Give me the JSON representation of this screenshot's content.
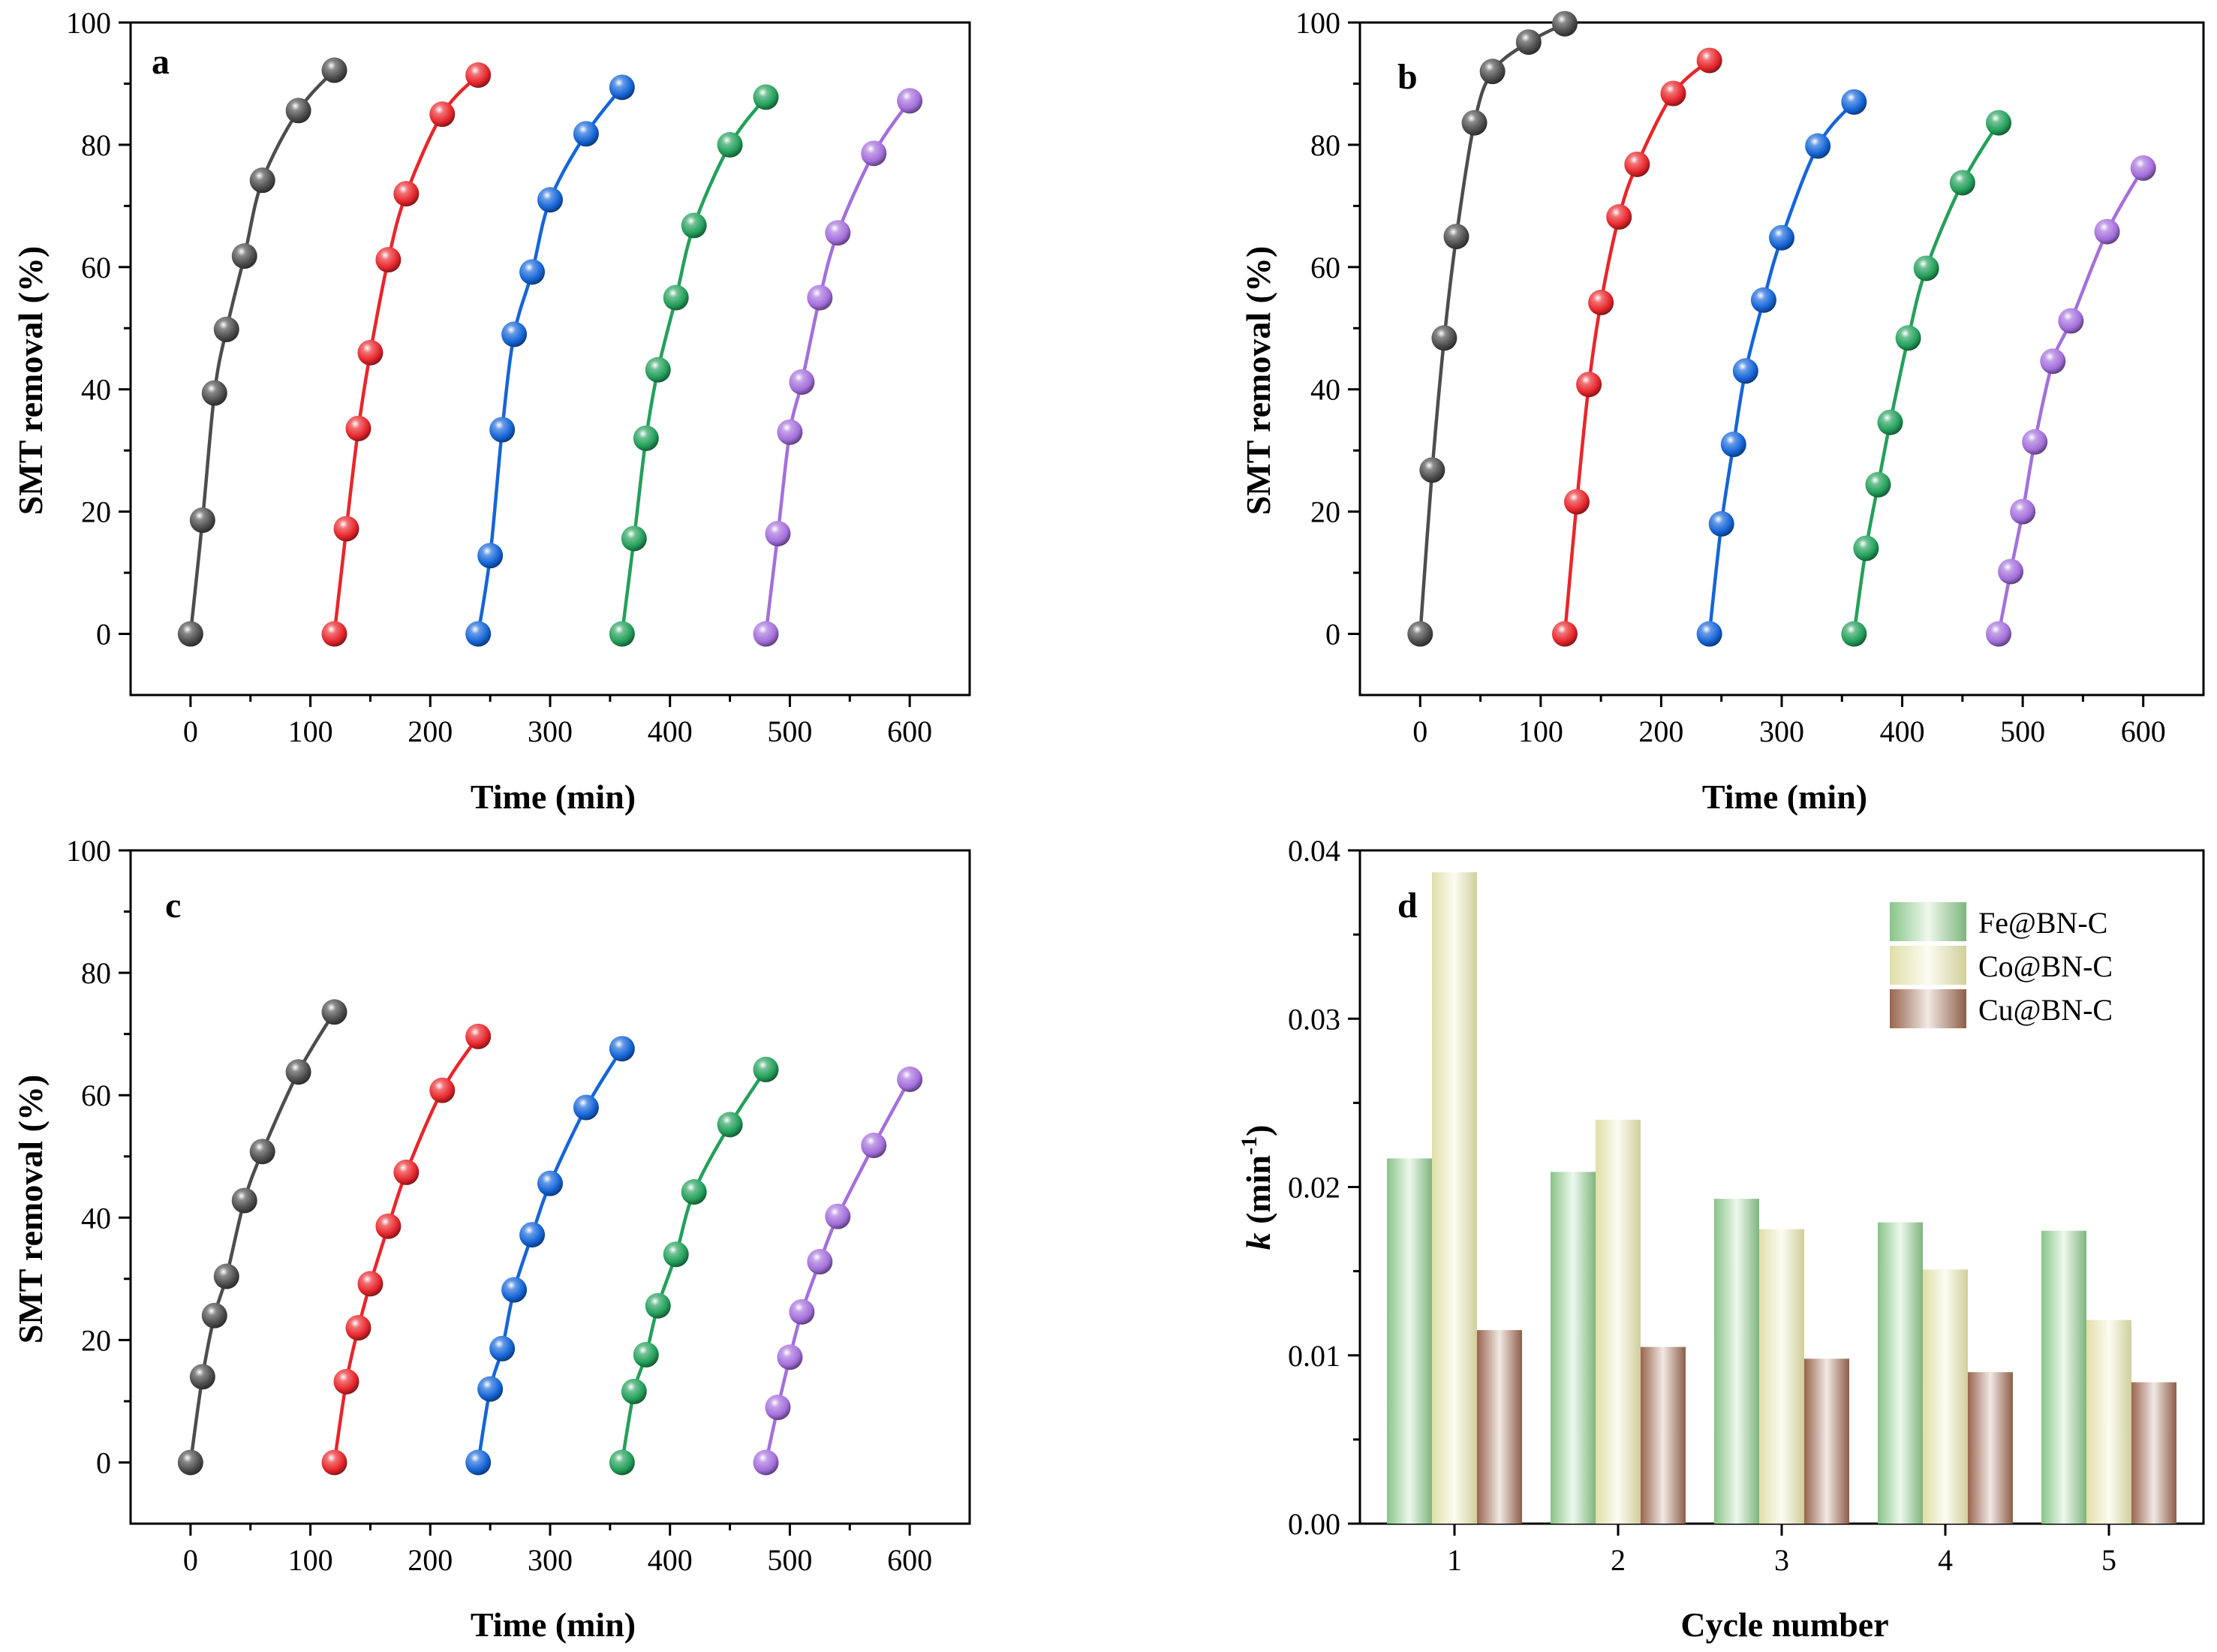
{
  "chart_data": [
    {
      "type": "line",
      "panel_label": "a",
      "xlabel": "Time (min)",
      "ylabel": "SMT removal (%)",
      "xlim": [
        -50,
        650
      ],
      "ylim": [
        -10,
        100
      ],
      "xticks": [
        0,
        100,
        200,
        300,
        400,
        500,
        600
      ],
      "yticks": [
        0,
        20,
        40,
        60,
        80,
        100
      ],
      "markers": "sphere",
      "series": [
        {
          "color": "#4d4d4d",
          "x": [
            0,
            10,
            20,
            30,
            45,
            60,
            90,
            120
          ],
          "y": [
            0,
            18.6,
            39.4,
            49.8,
            61.8,
            74.2,
            85.6,
            92.2
          ]
        },
        {
          "color": "#e8262b",
          "x": [
            120,
            130,
            140,
            150,
            165,
            180,
            210,
            240
          ],
          "y": [
            0,
            17.2,
            33.6,
            46.0,
            61.2,
            72.0,
            85.0,
            91.4
          ]
        },
        {
          "color": "#1565d8",
          "x": [
            240,
            250,
            260,
            270,
            285,
            300,
            330,
            360
          ],
          "y": [
            0,
            12.8,
            33.4,
            49.0,
            59.2,
            71.0,
            81.8,
            89.4
          ]
        },
        {
          "color": "#23a05a",
          "x": [
            360,
            370,
            380,
            390,
            405,
            420,
            450,
            480
          ],
          "y": [
            0,
            15.6,
            32.0,
            43.2,
            55.0,
            66.8,
            80.0,
            87.8
          ]
        },
        {
          "color": "#a46fdc",
          "x": [
            480,
            490,
            500,
            510,
            525,
            540,
            570,
            600
          ],
          "y": [
            0,
            16.4,
            33.0,
            41.2,
            55.0,
            65.6,
            78.6,
            87.2
          ]
        }
      ]
    },
    {
      "type": "line",
      "panel_label": "b",
      "xlabel": "Time (min)",
      "ylabel": "SMT removal (%)",
      "xlim": [
        -50,
        650
      ],
      "ylim": [
        -10,
        100
      ],
      "xticks": [
        0,
        100,
        200,
        300,
        400,
        500,
        600
      ],
      "yticks": [
        0,
        20,
        40,
        60,
        80,
        100
      ],
      "markers": "sphere",
      "series": [
        {
          "color": "#4d4d4d",
          "x": [
            0,
            10,
            20,
            30,
            45,
            60,
            90,
            120
          ],
          "y": [
            0,
            26.8,
            48.4,
            65.0,
            83.6,
            92.0,
            96.8,
            99.8
          ]
        },
        {
          "color": "#e8262b",
          "x": [
            120,
            130,
            140,
            150,
            165,
            180,
            210,
            240
          ],
          "y": [
            0,
            21.6,
            40.8,
            54.2,
            68.2,
            76.8,
            88.4,
            93.8
          ]
        },
        {
          "color": "#1565d8",
          "x": [
            240,
            250,
            260,
            270,
            285,
            300,
            330,
            360
          ],
          "y": [
            0,
            18.0,
            31.0,
            43.0,
            54.6,
            64.8,
            79.8,
            87.0
          ]
        },
        {
          "color": "#23a05a",
          "x": [
            360,
            370,
            380,
            390,
            405,
            420,
            450,
            480
          ],
          "y": [
            0,
            14.0,
            24.4,
            34.6,
            48.4,
            59.8,
            73.8,
            83.6
          ]
        },
        {
          "color": "#a46fdc",
          "x": [
            480,
            490,
            500,
            510,
            525,
            540,
            570,
            600
          ],
          "y": [
            0,
            10.2,
            20.0,
            31.4,
            44.6,
            51.2,
            65.8,
            76.2
          ]
        }
      ]
    },
    {
      "type": "line",
      "panel_label": "c",
      "xlabel": "Time (min)",
      "ylabel": "SMT removal (%)",
      "xlim": [
        -50,
        650
      ],
      "ylim": [
        -10,
        100
      ],
      "xticks": [
        0,
        100,
        200,
        300,
        400,
        500,
        600
      ],
      "yticks": [
        0,
        20,
        40,
        60,
        80,
        100
      ],
      "markers": "sphere",
      "series": [
        {
          "color": "#4d4d4d",
          "x": [
            0,
            10,
            20,
            30,
            45,
            60,
            90,
            120
          ],
          "y": [
            0,
            14.0,
            24.0,
            30.4,
            42.8,
            50.8,
            63.8,
            73.6
          ]
        },
        {
          "color": "#e8262b",
          "x": [
            120,
            130,
            140,
            150,
            165,
            180,
            210,
            240
          ],
          "y": [
            0,
            13.2,
            22.0,
            29.2,
            38.6,
            47.4,
            60.8,
            69.6
          ]
        },
        {
          "color": "#1565d8",
          "x": [
            240,
            250,
            260,
            270,
            285,
            300,
            330,
            360
          ],
          "y": [
            0,
            12.0,
            18.6,
            28.2,
            37.2,
            45.6,
            58.0,
            67.6
          ]
        },
        {
          "color": "#23a05a",
          "x": [
            360,
            370,
            380,
            390,
            405,
            420,
            450,
            480
          ],
          "y": [
            0,
            11.6,
            17.6,
            25.6,
            34.0,
            44.2,
            55.2,
            64.2
          ]
        },
        {
          "color": "#a46fdc",
          "x": [
            480,
            490,
            500,
            510,
            525,
            540,
            570,
            600
          ],
          "y": [
            0,
            9.0,
            17.2,
            24.6,
            32.8,
            40.2,
            51.8,
            62.6
          ]
        }
      ]
    },
    {
      "type": "bar",
      "panel_label": "d",
      "xlabel": "Cycle number",
      "ylabel_main": "k",
      "ylabel_unit": " (min",
      "ylabel_sup": "-1",
      "ylabel_close": ")",
      "ylim": [
        0,
        0.04
      ],
      "yticks": [
        "0.00",
        "0.01",
        "0.02",
        "0.03",
        "0.04"
      ],
      "categories": [
        "1",
        "2",
        "3",
        "4",
        "5"
      ],
      "legend_position": "top-right",
      "series": [
        {
          "name": "Fe@BN-C",
          "color": "#8fce8f",
          "values": [
            0.0217,
            0.0209,
            0.0193,
            0.0179,
            0.0174
          ]
        },
        {
          "name": "Co@BN-C",
          "color": "#ecebb0",
          "values": [
            0.0387,
            0.024,
            0.0175,
            0.0151,
            0.0121
          ]
        },
        {
          "name": "Cu@BN-C",
          "color": "#a06a52",
          "values": [
            0.0115,
            0.0105,
            0.0098,
            0.009,
            0.0084
          ]
        }
      ]
    }
  ]
}
